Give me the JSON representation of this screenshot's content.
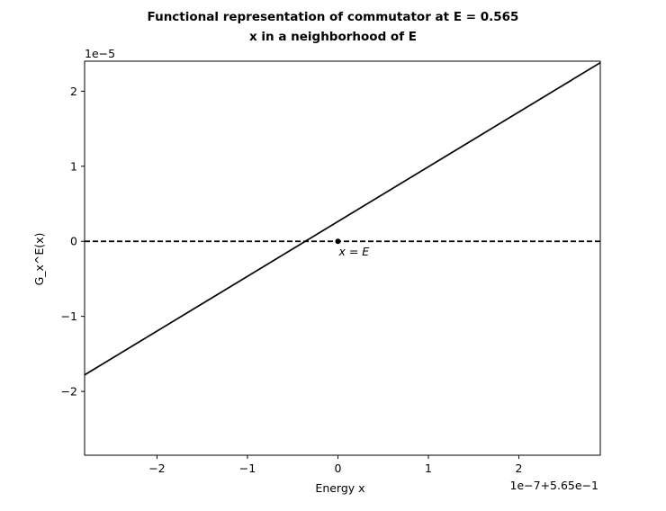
{
  "chart_data": {
    "type": "line",
    "title_line1": "Functional representation of commutator at E = 0.565",
    "title_line2": "x in a neighborhood of E",
    "xlabel": "Energy x",
    "ylabel": "G_x^E(x)",
    "x_offset_label": "1e−7+5.65e−1",
    "y_offset_label": "1e−5",
    "xlim": [
      -2.8,
      2.9
    ],
    "ylim": [
      -2.85,
      2.4
    ],
    "x_ticks": [
      -2,
      -1,
      0,
      1,
      2
    ],
    "x_tick_labels": [
      "−2",
      "−1",
      "0",
      "1",
      "2"
    ],
    "y_ticks": [
      -2,
      -1,
      0,
      1,
      2
    ],
    "y_tick_labels": [
      "−2",
      "−1",
      "0",
      "1",
      "2"
    ],
    "series": [
      {
        "style": "solid",
        "color": "#000000",
        "x": [
          -2.8,
          2.9
        ],
        "y": [
          -1.78,
          2.38
        ]
      },
      {
        "style": "dashed",
        "color": "#000000",
        "x": [
          -2.8,
          2.9
        ],
        "y": [
          0,
          0
        ]
      }
    ],
    "marker": {
      "x": 0,
      "y": 0,
      "label": "x = E"
    },
    "grid": false
  }
}
